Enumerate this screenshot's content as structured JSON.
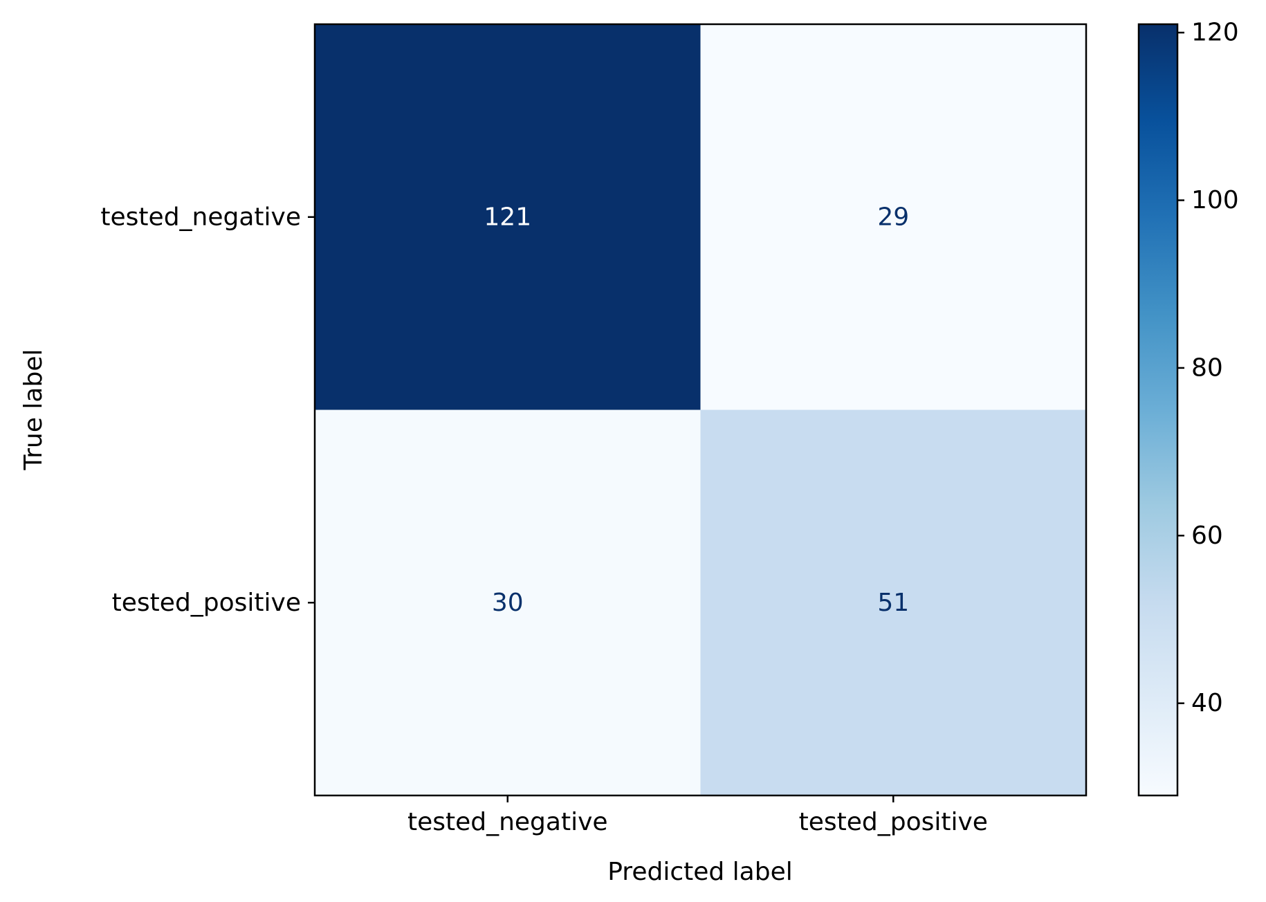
{
  "chart_data": {
    "type": "heatmap",
    "title": "",
    "xlabel": "Predicted label",
    "ylabel": "True label",
    "x_categories": [
      "tested_negative",
      "tested_positive"
    ],
    "y_categories": [
      "tested_negative",
      "tested_positive"
    ],
    "matrix": [
      [
        121,
        29
      ],
      [
        30,
        51
      ]
    ],
    "colormap": "Blues",
    "colorbar": {
      "range": [
        29,
        121
      ],
      "ticks": [
        40,
        60,
        80,
        100,
        120
      ],
      "tick_labels": [
        "40",
        "60",
        "80",
        "100",
        "120"
      ]
    },
    "grid": false,
    "colors": {
      "dark_text": "#08306b",
      "light_text": "#ffffff",
      "axis": "#000000"
    }
  }
}
